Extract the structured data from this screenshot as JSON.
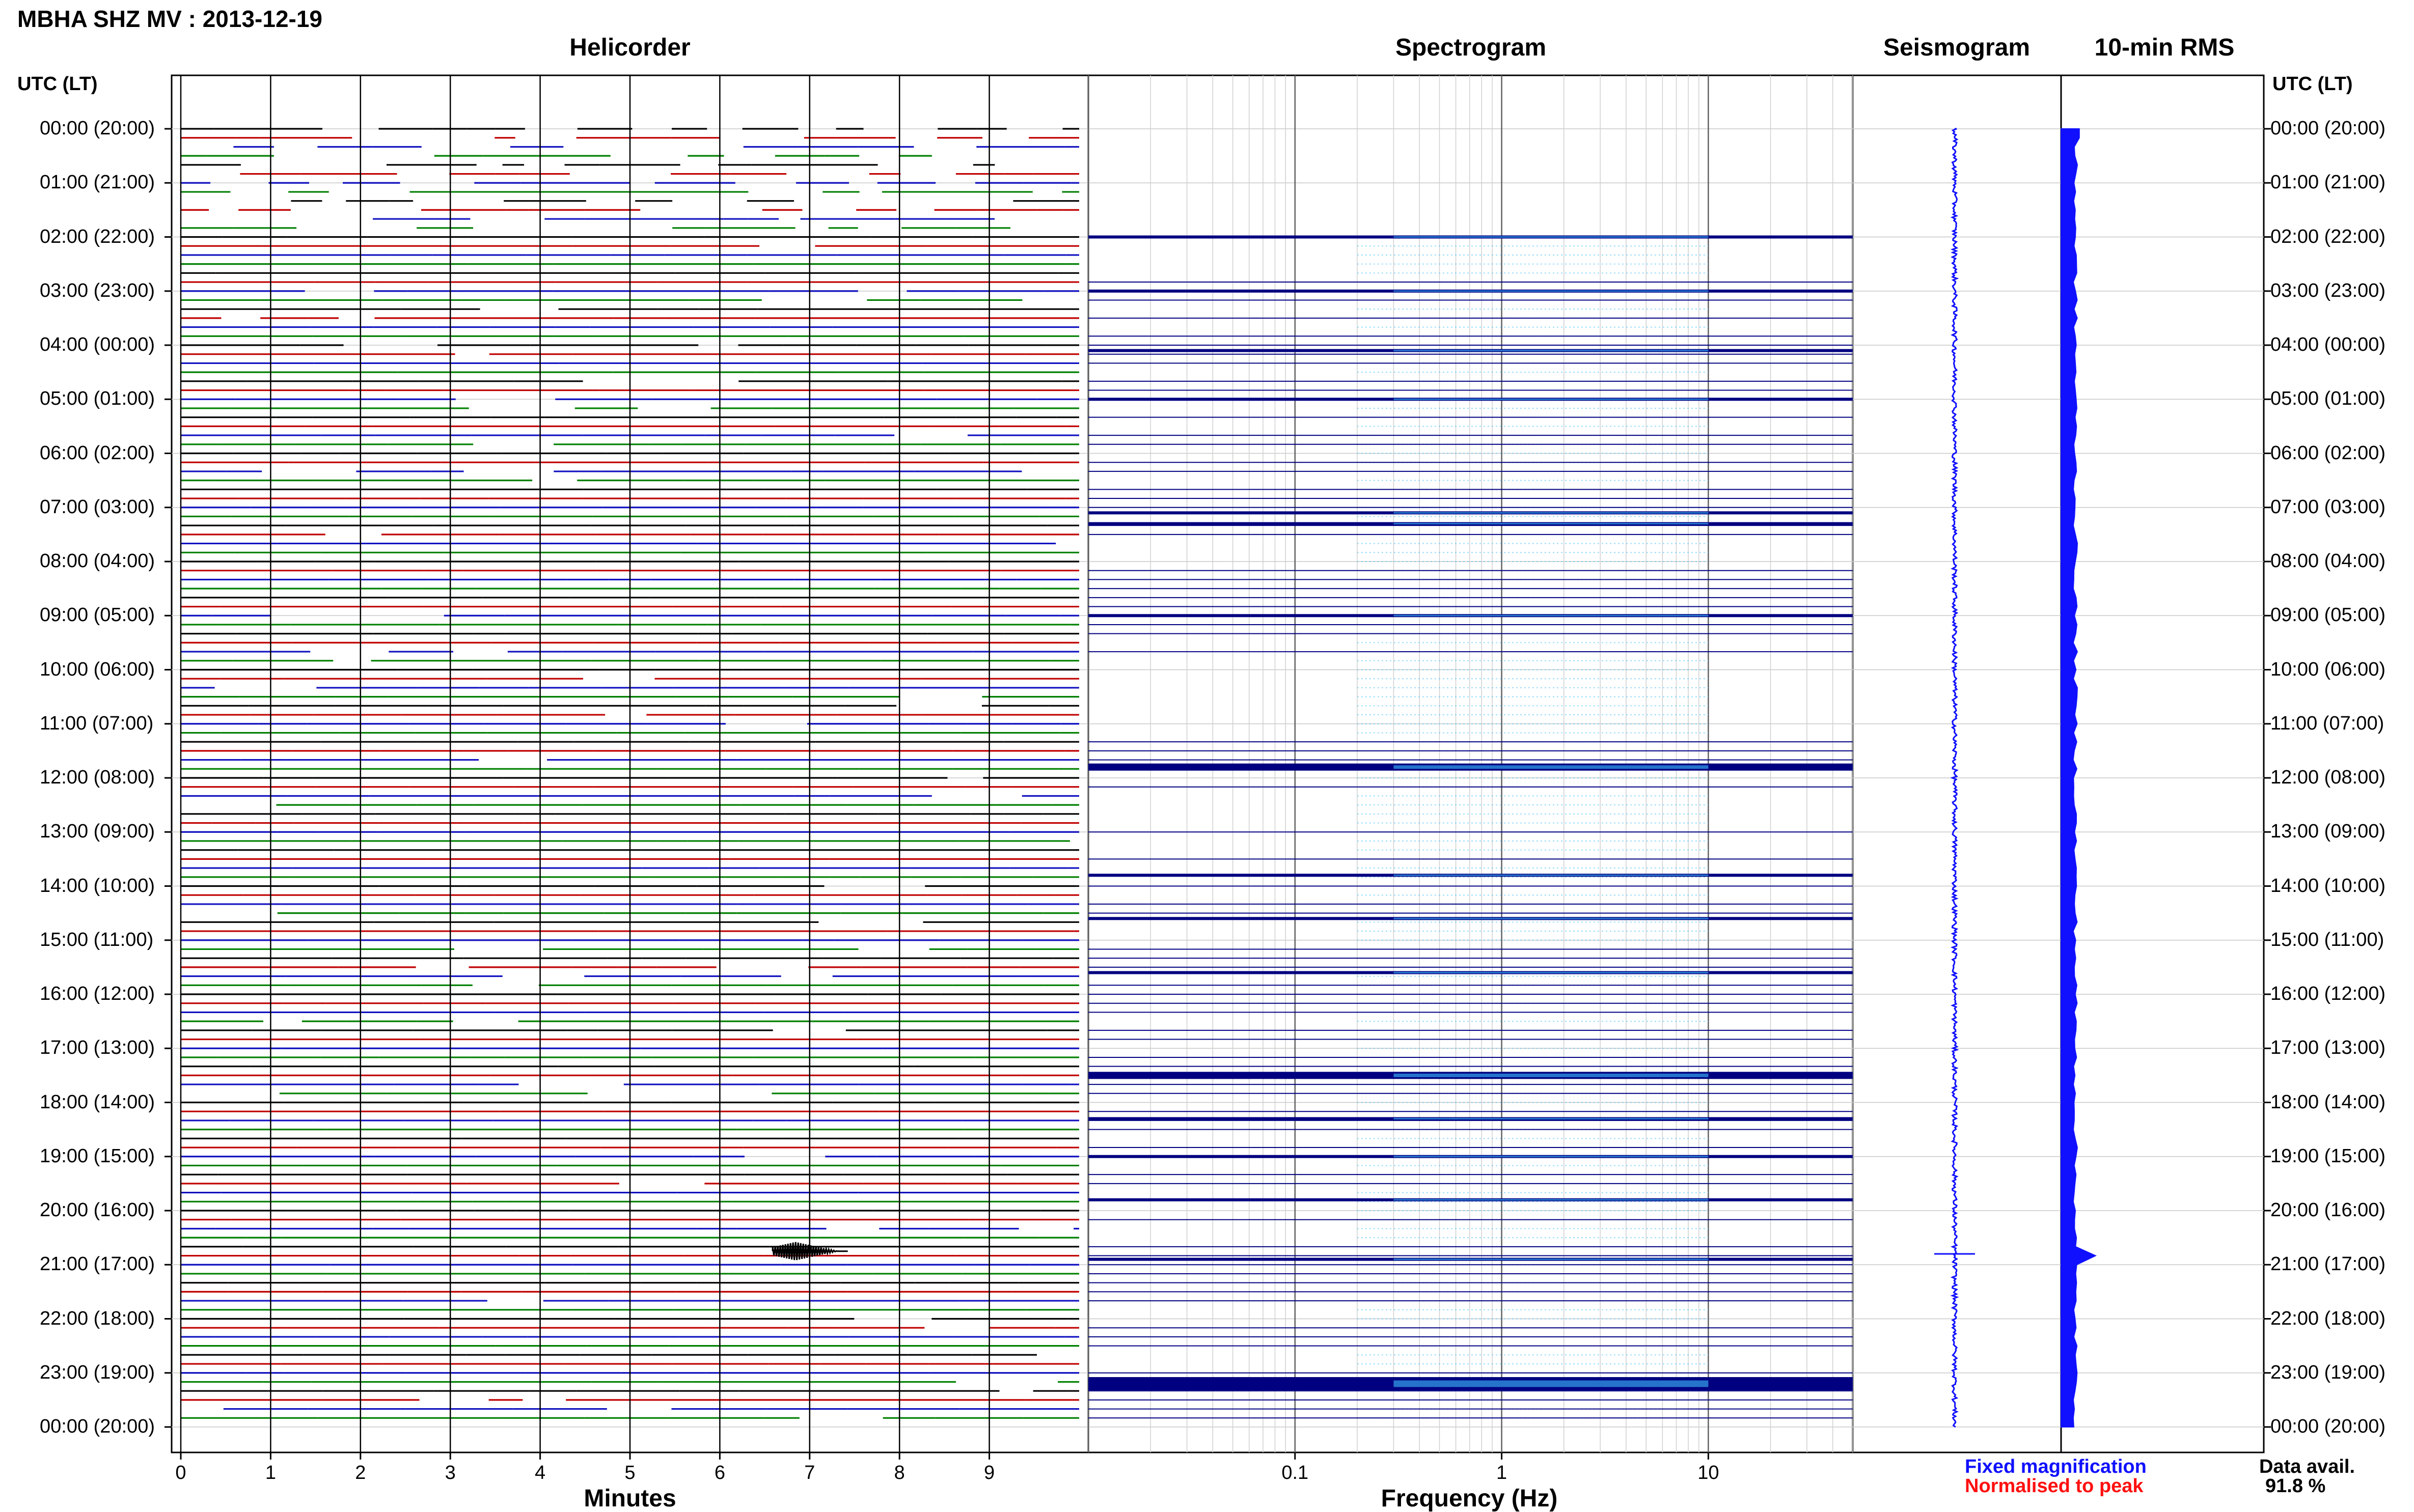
{
  "page_title": "MBHA SHZ MV : 2013-12-19",
  "panels": {
    "helicorder": "Helicorder",
    "spectrogram": "Spectrogram",
    "seismogram": "Seismogram",
    "rms": "10-min RMS"
  },
  "time_axis_label": "UTC (LT)",
  "time_ticks": [
    "00:00 (20:00)",
    "01:00 (21:00)",
    "02:00 (22:00)",
    "03:00 (23:00)",
    "04:00 (00:00)",
    "05:00 (01:00)",
    "06:00 (02:00)",
    "07:00 (03:00)",
    "08:00 (04:00)",
    "09:00 (05:00)",
    "10:00 (06:00)",
    "11:00 (07:00)",
    "12:00 (08:00)",
    "13:00 (09:00)",
    "14:00 (10:00)",
    "15:00 (11:00)",
    "16:00 (12:00)",
    "17:00 (13:00)",
    "18:00 (14:00)",
    "19:00 (15:00)",
    "20:00 (16:00)",
    "21:00 (17:00)",
    "22:00 (18:00)",
    "23:00 (19:00)",
    "00:00 (20:00)"
  ],
  "legend": {
    "fixed": "Fixed magnification",
    "normalised": "Normalised to peak",
    "avail_label": "Data avail.",
    "avail_value": "91.8 %"
  },
  "colors": {
    "fixed": "#1010ff",
    "normalised": "#ff1010",
    "trace_black": "#000000",
    "trace_red": "#c00000",
    "trace_blue": "#1010c0",
    "trace_green": "#008000",
    "spec_dark": "#000080",
    "spec_light": "#40c0ff",
    "seis": "#1010ff",
    "rms": "#1010ff"
  },
  "chart_data": [
    {
      "type": "line",
      "name": "helicorder",
      "title": "Helicorder",
      "xlabel": "Minutes",
      "xlim": [
        0,
        10
      ],
      "xticks": [
        0,
        1,
        2,
        3,
        4,
        5,
        6,
        7,
        8,
        9
      ],
      "lines_per_hour": 6,
      "gap_rows_hours": [
        0,
        2
      ],
      "event": {
        "hour": 20.75,
        "minute": 6.9
      }
    },
    {
      "type": "heatmap",
      "name": "spectrogram",
      "title": "Spectrogram",
      "xlabel": "Frequency (Hz)",
      "xscale": "log",
      "xlim": [
        0.01,
        50
      ],
      "xticks": [
        0.1,
        1,
        10
      ],
      "xticklabels": [
        "0.1",
        "1",
        "10"
      ],
      "dark_band_hours": [
        2,
        3,
        4.1,
        5,
        7.1,
        7.3,
        9,
        11.8,
        13.8,
        14.6,
        15.6,
        17.5,
        18.3,
        19,
        19.8,
        20.9,
        23.2
      ]
    },
    {
      "type": "line",
      "name": "seismogram",
      "title": "Seismogram",
      "event_hour": 20.8
    },
    {
      "type": "bar",
      "name": "rms",
      "title": "10-min RMS",
      "baseline_relative": 0.07,
      "spikes": [
        {
          "hour": 0.1,
          "value": 0.09
        },
        {
          "hour": 20.8,
          "value": 0.17
        }
      ]
    }
  ]
}
